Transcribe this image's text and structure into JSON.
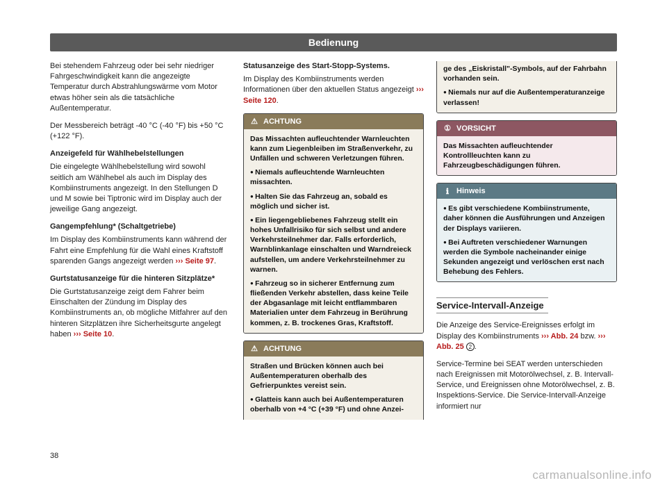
{
  "header": {
    "title": "Bedienung"
  },
  "page_number": "38",
  "watermark": "carmanualsonline.info",
  "colors": {
    "header_bg": "#5a5a5a",
    "ref": "#b71c1c",
    "achtung_hdr": "#8a7b5a",
    "achtung_body": "#f3f0e8",
    "vorsicht_hdr": "#8d5762",
    "vorsicht_body": "#f5e9ec",
    "hinweis_hdr": "#5c7a85",
    "hinweis_body": "#eaf1f3"
  },
  "col1": {
    "p1": "Bei stehendem Fahrzeug oder bei sehr niedriger Fahrgeschwindigkeit kann die angezeigte Temperatur durch Abstrahlungswärme vom Motor etwas höher sein als die tatsächliche Außentemperatur.",
    "p2": "Der Messbereich beträgt -40 °C (-40 °F) bis +50 °C (+122 °F).",
    "h1": "Anzeigefeld für Wählhebelstellungen",
    "p3": "Die eingelegte Wählhebelstellung wird sowohl seitlich am Wählhebel als auch im Display des Kombiinstruments angezeigt. In den Stellungen D und M sowie bei Tiptronic wird im Display auch der jeweilige Gang angezeigt.",
    "h2": "Gangempfehlung* (Schaltgetriebe)",
    "p4a": "Im Display des Kombiinstruments kann während der Fahrt eine Empfehlung für die Wahl eines Kraftstoff sparenden Gangs angezeigt werden ",
    "p4ref": "››› Seite 97",
    "p4b": ".",
    "h3": "Gurtstatusanzeige für die hinteren Sitzplätze*",
    "p5a": "Die Gurtstatusanzeige zeigt dem Fahrer beim Einschalten der Zündung im Display des Kombiinstruments an, ob mögliche Mitfahrer auf den hinteren Sitzplätzen ihre Sicherheitsgurte angelegt haben ",
    "p5ref": "››› Seite 10",
    "p5b": "."
  },
  "col2": {
    "h1": "Statusanzeige des Start-Stopp-Systems.",
    "p1a": "Im Display des Kombiinstruments werden Informationen über den aktuellen Status angezeigt ",
    "p1ref": "››› Seite 120",
    "p1b": ".",
    "achtung1": {
      "label": "ACHTUNG",
      "b1": "Das Missachten aufleuchtender Warnleuchten kann zum Liegenbleiben im Straßenverkehr, zu Unfällen und schweren Verletzungen führen.",
      "b2": "Niemals aufleuchtende Warnleuchten missachten.",
      "b3": "Halten Sie das Fahrzeug an, sobald es möglich und sicher ist.",
      "b4": "Ein liegengebliebenes Fahrzeug stellt ein hohes Unfallrisiko für sich selbst und andere Verkehrsteilnehmer dar. Falls erforderlich, Warnblinkanlage einschalten und Warndreieck aufstellen, um andere Verkehrsteilnehmer zu warnen.",
      "b5": "Fahrzeug so in sicherer Entfernung zum fließenden Verkehr abstellen, dass keine Teile der Abgasanlage mit leicht entflammbaren Materialien unter dem Fahrzeug in Berührung kommen, z. B. trockenes Gras, Kraftstoff."
    },
    "achtung2": {
      "label": "ACHTUNG",
      "b1": "Straßen und Brücken können auch bei Außentemperaturen oberhalb des Gefrierpunktes vereist sein.",
      "b2": "Glatteis kann auch bei Außentemperaturen oberhalb von +4 °C (+39 °F) und ohne Anzei-"
    }
  },
  "col3": {
    "achtung_cont": {
      "b1": "ge des „Eiskristall\"-Symbols, auf der Fahrbahn vorhanden sein.",
      "b2": "Niemals nur auf die Außentemperaturanzeige verlassen!"
    },
    "vorsicht": {
      "label": "VORSICHT",
      "b1": "Das Missachten aufleuchtender Kontrollleuchten kann zu Fahrzeugbeschädigungen führen."
    },
    "hinweis": {
      "label": "Hinweis",
      "b1": "Es gibt verschiedene Kombiinstrumente, daher können die Ausführungen und Anzeigen der Displays variieren.",
      "b2": "Bei Auftreten verschiedener Warnungen werden die Symbole nacheinander einige Sekunden angezeigt und verlöschen erst nach Behebung des Fehlers."
    },
    "section": "Service-Intervall-Anzeige",
    "p1a": "Die Anzeige des Service-Ereignisses erfolgt im Display des Kombiinstruments ",
    "p1ref1": "››› Abb. 24",
    "p1mid": " bzw. ",
    "p1ref2": "››› Abb. 25",
    "circ": "2",
    "p1b": ".",
    "p2": "Service-Termine bei SEAT werden unterschieden nach Ereignissen mit Motorölwechsel, z. B. Intervall-Service, und Ereignissen ohne Motorölwechsel, z. B. Inspektions-Service. Die Service-Intervall-Anzeige informiert nur"
  }
}
